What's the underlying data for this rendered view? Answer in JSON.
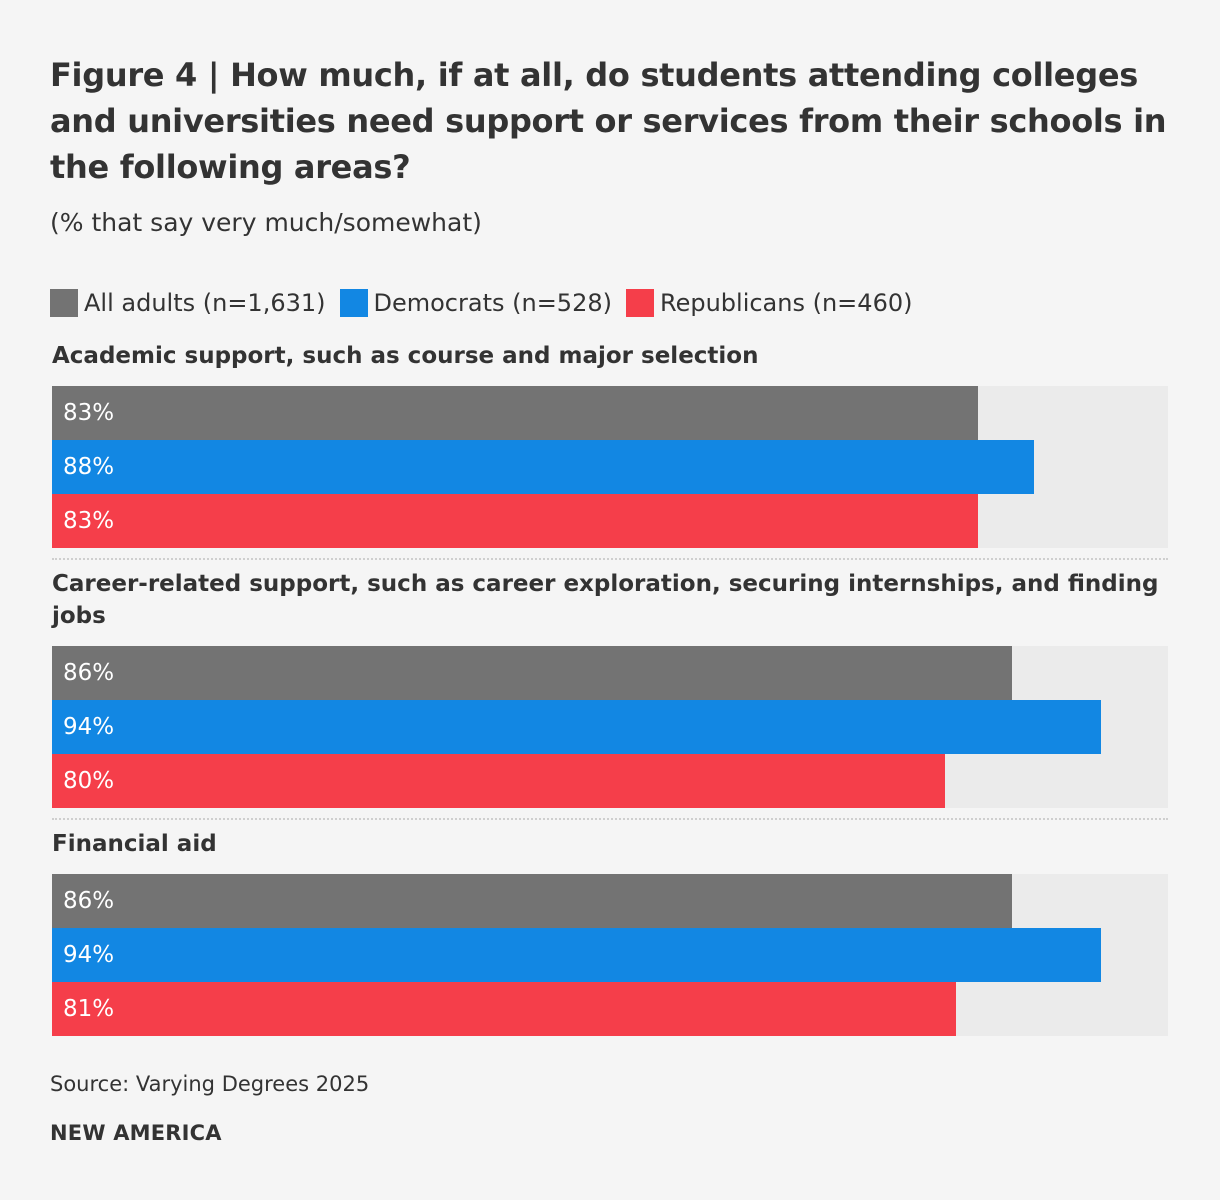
{
  "title": "Figure 4 | How much, if at all, do students attending colleges and universities need support or services from their schools in the following areas?",
  "subtitle": "(% that say very much/somewhat)",
  "source": "Source: Varying Degrees 2025",
  "brand": "NEW AMERICA",
  "colors": {
    "all_adults": "#737373",
    "democrats": "#1287e3",
    "republicans": "#f53e4a",
    "track": "#ebebeb"
  },
  "chart_data": {
    "type": "bar",
    "orientation": "horizontal",
    "title": "Figure 4 | How much, if at all, do students attending colleges and universities need support or services from their schools in the following areas?",
    "subtitle": "(% that say very much/somewhat)",
    "xlim": [
      0,
      100
    ],
    "unit": "%",
    "legend_position": "top-left",
    "categories": [
      "Academic support, such as course and major selection",
      "Career-related support, such as career exploration, securing internships, and finding jobs",
      "Financial aid"
    ],
    "series": [
      {
        "name": "All adults (n=1,631)",
        "values": [
          83,
          86,
          86
        ],
        "labels": [
          "83%",
          "86%",
          "86%"
        ],
        "color": "#737373"
      },
      {
        "name": "Democrats (n=528)",
        "values": [
          88,
          94,
          94
        ],
        "labels": [
          "88%",
          "94%",
          "94%"
        ],
        "color": "#1287e3"
      },
      {
        "name": "Republicans (n=460)",
        "values": [
          83,
          80,
          81
        ],
        "labels": [
          "83%",
          "80%",
          "81%"
        ],
        "color": "#f53e4a"
      }
    ]
  }
}
